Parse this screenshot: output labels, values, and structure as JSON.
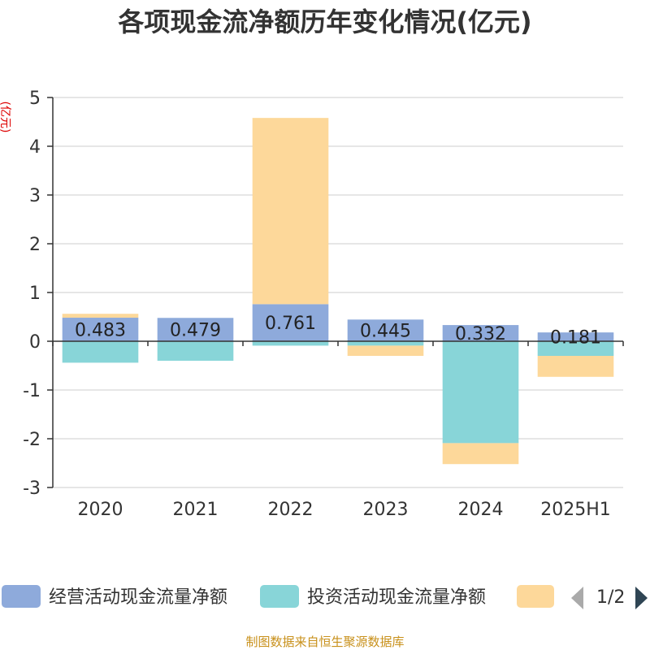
{
  "chart_data": {
    "type": "bar",
    "stacked": true,
    "title": "各项现金流净额历年变化情况(亿元)",
    "ylabel": "(亿元)",
    "categories": [
      "2020",
      "2021",
      "2022",
      "2023",
      "2024",
      "2025H1"
    ],
    "ylim": [
      -3,
      5
    ],
    "yticks": [
      5,
      4,
      3,
      2,
      1,
      0,
      -1,
      -2,
      -3
    ],
    "grid": true,
    "series": [
      {
        "name": "经营活动现金流量净额",
        "color": "#8eaadb",
        "values": [
          0.483,
          0.479,
          0.761,
          0.445,
          0.332,
          0.181
        ],
        "labels": [
          "0.483",
          "0.479",
          "0.761",
          "0.445",
          "0.332",
          "0.181"
        ]
      },
      {
        "name": "投资活动现金流量净额",
        "color": "#88d5d8",
        "values": [
          -0.44,
          -0.4,
          -0.09,
          -0.09,
          -2.09,
          -0.3
        ]
      },
      {
        "name": "",
        "color": "#fdd89a",
        "values": [
          0.08,
          0.0,
          3.82,
          -0.21,
          -0.43,
          -0.43
        ]
      }
    ],
    "legend": {
      "position": "bottom",
      "page": "1/2"
    }
  },
  "source": "制图数据来自恒生聚源数据库"
}
